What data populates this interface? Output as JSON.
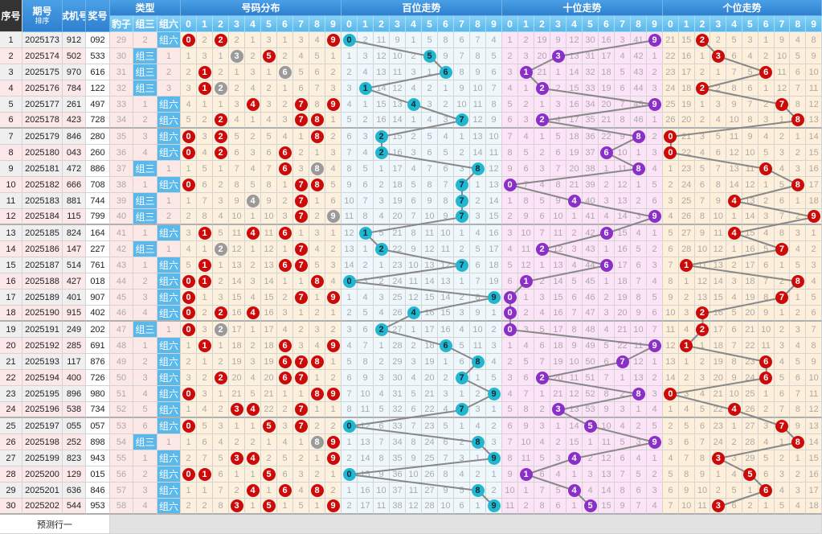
{
  "header": {
    "seq": "序号",
    "issue": "期号",
    "sort": "排序",
    "test": "试机号",
    "draw": "奖号",
    "type_group": "类型",
    "type_cols": [
      "豹子",
      "组三",
      "组六"
    ],
    "dist_group": "号码分布",
    "bai_group": "百位走势",
    "shi_group": "十位走势",
    "ge_group": "个位走势",
    "digits": [
      "0",
      "1",
      "2",
      "3",
      "4",
      "5",
      "6",
      "7",
      "8",
      "9"
    ]
  },
  "rows": [
    {
      "seq": "1",
      "issue": "2025173",
      "test": "912",
      "draw": "092"
    },
    {
      "seq": "2",
      "issue": "2025174",
      "test": "502",
      "draw": "533"
    },
    {
      "seq": "3",
      "issue": "2025175",
      "test": "970",
      "draw": "616"
    },
    {
      "seq": "4",
      "issue": "2025176",
      "test": "784",
      "draw": "122"
    },
    {
      "seq": "5",
      "issue": "2025177",
      "test": "261",
      "draw": "497"
    },
    {
      "seq": "6",
      "issue": "2025178",
      "test": "423",
      "draw": "728"
    },
    {
      "seq": "7",
      "issue": "2025179",
      "test": "846",
      "draw": "280"
    },
    {
      "seq": "8",
      "issue": "2025180",
      "test": "043",
      "draw": "260"
    },
    {
      "seq": "9",
      "issue": "2025181",
      "test": "472",
      "draw": "886"
    },
    {
      "seq": "10",
      "issue": "2025182",
      "test": "666",
      "draw": "708"
    },
    {
      "seq": "11",
      "issue": "2025183",
      "test": "881",
      "draw": "744"
    },
    {
      "seq": "12",
      "issue": "2025184",
      "test": "115",
      "draw": "799"
    },
    {
      "seq": "13",
      "issue": "2025185",
      "test": "824",
      "draw": "164"
    },
    {
      "seq": "14",
      "issue": "2025186",
      "test": "147",
      "draw": "227"
    },
    {
      "seq": "15",
      "issue": "2025187",
      "test": "514",
      "draw": "761"
    },
    {
      "seq": "16",
      "issue": "2025188",
      "test": "427",
      "draw": "018"
    },
    {
      "seq": "17",
      "issue": "2025189",
      "test": "401",
      "draw": "907"
    },
    {
      "seq": "18",
      "issue": "2025190",
      "test": "915",
      "draw": "402"
    },
    {
      "seq": "19",
      "issue": "2025191",
      "test": "249",
      "draw": "202"
    },
    {
      "seq": "20",
      "issue": "2025192",
      "test": "285",
      "draw": "691"
    },
    {
      "seq": "21",
      "issue": "2025193",
      "test": "117",
      "draw": "876"
    },
    {
      "seq": "22",
      "issue": "2025194",
      "test": "400",
      "draw": "726"
    },
    {
      "seq": "23",
      "issue": "2025195",
      "test": "896",
      "draw": "980"
    },
    {
      "seq": "24",
      "issue": "2025196",
      "test": "538",
      "draw": "734"
    },
    {
      "seq": "25",
      "issue": "2025197",
      "test": "055",
      "draw": "057"
    },
    {
      "seq": "26",
      "issue": "2025198",
      "test": "252",
      "draw": "898"
    },
    {
      "seq": "27",
      "issue": "2025199",
      "test": "823",
      "draw": "943"
    },
    {
      "seq": "28",
      "issue": "2025200",
      "test": "129",
      "draw": "015"
    },
    {
      "seq": "29",
      "issue": "2025201",
      "test": "636",
      "draw": "846"
    },
    {
      "seq": "30",
      "issue": "2025202",
      "test": "544",
      "draw": "953"
    }
  ],
  "first_row_omissions": {
    "type": [
      29,
      2,
      null
    ],
    "dist": [
      null,
      2,
      null,
      2,
      1,
      3,
      1,
      3,
      4,
      null
    ],
    "bai": [
      null,
      2,
      11,
      9,
      1,
      5,
      8,
      6,
      7,
      4
    ],
    "shi": [
      1,
      2,
      19,
      9,
      12,
      30,
      16,
      3,
      41,
      null
    ],
    "ge": [
      21,
      15,
      null,
      2,
      5,
      3,
      1,
      9,
      4,
      8
    ]
  },
  "footer": {
    "predict_label": "预测行一"
  },
  "colors": {
    "dist_ball": "#cc0a0a",
    "repeat_ball": "#9a9a9a",
    "bai_ball": "#22b6cf",
    "shi_ball": "#8a2fc8",
    "ge_ball": "#cc0a0a",
    "trend_line": "#888888"
  }
}
